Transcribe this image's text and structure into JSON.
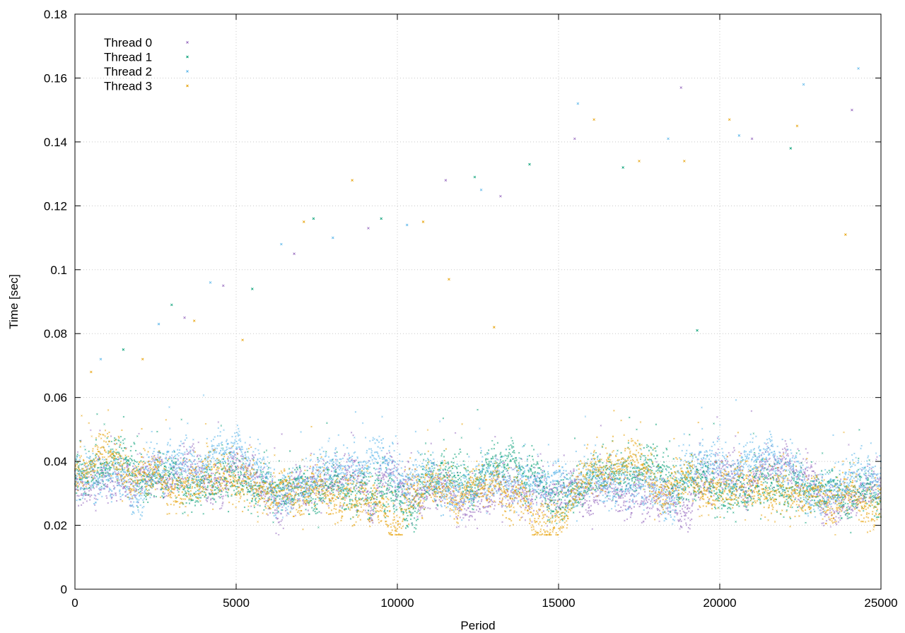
{
  "chart_data": {
    "type": "scatter",
    "title": "",
    "xlabel": "Period",
    "ylabel": "Time [sec]",
    "xlim": [
      0,
      25000
    ],
    "ylim": [
      0,
      0.18
    ],
    "xticks": [
      0,
      5000,
      10000,
      15000,
      20000,
      25000
    ],
    "xtick_labels": [
      "0",
      "5000",
      "10000",
      "15000",
      "20000",
      "25000"
    ],
    "yticks": [
      0,
      0.02,
      0.04,
      0.06,
      0.08,
      0.1,
      0.12,
      0.14,
      0.16,
      0.18
    ],
    "ytick_labels": [
      "0",
      "0.02",
      "0.04",
      "0.06",
      "0.08",
      "0.1",
      "0.12",
      "0.14",
      "0.16",
      "0.18"
    ],
    "grid": true,
    "legend_position": "top-left",
    "series": [
      {
        "name": "Thread 0",
        "color": "#9467bd",
        "baseline": [
          [
            0,
            0.034
          ],
          [
            1000,
            0.035
          ],
          [
            2000,
            0.034
          ],
          [
            3000,
            0.033
          ],
          [
            4000,
            0.034
          ],
          [
            5000,
            0.034
          ],
          [
            6000,
            0.031
          ],
          [
            7000,
            0.032
          ],
          [
            8000,
            0.033
          ],
          [
            9000,
            0.032
          ],
          [
            10000,
            0.031
          ],
          [
            11000,
            0.031
          ],
          [
            12000,
            0.03
          ],
          [
            13000,
            0.031
          ],
          [
            14000,
            0.031
          ],
          [
            15000,
            0.031
          ],
          [
            16000,
            0.033
          ],
          [
            17000,
            0.033
          ],
          [
            18000,
            0.031
          ],
          [
            19000,
            0.032
          ],
          [
            20000,
            0.032
          ],
          [
            21000,
            0.031
          ],
          [
            22000,
            0.031
          ],
          [
            23000,
            0.031
          ],
          [
            24000,
            0.031
          ],
          [
            25000,
            0.03
          ]
        ],
        "outliers": [
          [
            3400,
            0.085
          ],
          [
            4600,
            0.095
          ],
          [
            6800,
            0.105
          ],
          [
            9100,
            0.113
          ],
          [
            11500,
            0.128
          ],
          [
            13200,
            0.123
          ],
          [
            15500,
            0.141
          ],
          [
            18800,
            0.157
          ],
          [
            21000,
            0.141
          ],
          [
            24100,
            0.15
          ]
        ]
      },
      {
        "name": "Thread 1",
        "color": "#009e73",
        "baseline": [
          [
            0,
            0.035
          ],
          [
            1000,
            0.035
          ],
          [
            2000,
            0.034
          ],
          [
            3000,
            0.034
          ],
          [
            4000,
            0.035
          ],
          [
            5000,
            0.034
          ],
          [
            6000,
            0.032
          ],
          [
            7000,
            0.033
          ],
          [
            8000,
            0.034
          ],
          [
            9000,
            0.033
          ],
          [
            10000,
            0.032
          ],
          [
            11000,
            0.032
          ],
          [
            12000,
            0.031
          ],
          [
            13000,
            0.032
          ],
          [
            14000,
            0.032
          ],
          [
            15000,
            0.032
          ],
          [
            16000,
            0.034
          ],
          [
            17000,
            0.034
          ],
          [
            18000,
            0.032
          ],
          [
            19000,
            0.033
          ],
          [
            20000,
            0.033
          ],
          [
            21000,
            0.032
          ],
          [
            22000,
            0.032
          ],
          [
            23000,
            0.032
          ],
          [
            24000,
            0.032
          ],
          [
            25000,
            0.031
          ]
        ],
        "outliers": [
          [
            1500,
            0.075
          ],
          [
            3000,
            0.089
          ],
          [
            5500,
            0.094
          ],
          [
            7400,
            0.116
          ],
          [
            9500,
            0.116
          ],
          [
            12400,
            0.129
          ],
          [
            14100,
            0.133
          ],
          [
            17000,
            0.132
          ],
          [
            19300,
            0.081
          ],
          [
            22200,
            0.138
          ]
        ]
      },
      {
        "name": "Thread 2",
        "color": "#56b4e9",
        "baseline": [
          [
            0,
            0.036
          ],
          [
            1000,
            0.037
          ],
          [
            2000,
            0.036
          ],
          [
            3000,
            0.035
          ],
          [
            4000,
            0.036
          ],
          [
            5000,
            0.036
          ],
          [
            6000,
            0.033
          ],
          [
            7000,
            0.035
          ],
          [
            8000,
            0.036
          ],
          [
            9000,
            0.035
          ],
          [
            10000,
            0.034
          ],
          [
            11000,
            0.034
          ],
          [
            12000,
            0.033
          ],
          [
            13000,
            0.034
          ],
          [
            14000,
            0.034
          ],
          [
            15000,
            0.035
          ],
          [
            16000,
            0.036
          ],
          [
            17000,
            0.036
          ],
          [
            18000,
            0.034
          ],
          [
            19000,
            0.035
          ],
          [
            20000,
            0.035
          ],
          [
            21000,
            0.034
          ],
          [
            22000,
            0.034
          ],
          [
            23000,
            0.034
          ],
          [
            24000,
            0.034
          ],
          [
            25000,
            0.033
          ]
        ],
        "outliers": [
          [
            800,
            0.072
          ],
          [
            2600,
            0.083
          ],
          [
            4200,
            0.096
          ],
          [
            6400,
            0.108
          ],
          [
            8000,
            0.11
          ],
          [
            10300,
            0.114
          ],
          [
            12600,
            0.125
          ],
          [
            15600,
            0.152
          ],
          [
            18400,
            0.141
          ],
          [
            20600,
            0.142
          ],
          [
            22600,
            0.158
          ],
          [
            24300,
            0.163
          ]
        ]
      },
      {
        "name": "Thread 3",
        "color": "#e69f00",
        "baseline": [
          [
            0,
            0.036
          ],
          [
            1000,
            0.037
          ],
          [
            2000,
            0.035
          ],
          [
            3000,
            0.034
          ],
          [
            4000,
            0.035
          ],
          [
            5000,
            0.035
          ],
          [
            6000,
            0.031
          ],
          [
            7000,
            0.033
          ],
          [
            8000,
            0.032
          ],
          [
            9000,
            0.03
          ],
          [
            10000,
            0.027
          ],
          [
            11000,
            0.028
          ],
          [
            12000,
            0.027
          ],
          [
            13000,
            0.024
          ],
          [
            14000,
            0.026
          ],
          [
            15000,
            0.024
          ],
          [
            16000,
            0.035
          ],
          [
            17000,
            0.036
          ],
          [
            18000,
            0.03
          ],
          [
            19000,
            0.033
          ],
          [
            20000,
            0.034
          ],
          [
            21000,
            0.031
          ],
          [
            22000,
            0.031
          ],
          [
            23000,
            0.03
          ],
          [
            24000,
            0.031
          ],
          [
            25000,
            0.028
          ]
        ],
        "outliers": [
          [
            500,
            0.068
          ],
          [
            2100,
            0.072
          ],
          [
            3700,
            0.084
          ],
          [
            5200,
            0.078
          ],
          [
            7100,
            0.115
          ],
          [
            8600,
            0.128
          ],
          [
            10800,
            0.115
          ],
          [
            11600,
            0.097
          ],
          [
            13000,
            0.082
          ],
          [
            16100,
            0.147
          ],
          [
            17500,
            0.134
          ],
          [
            18900,
            0.134
          ],
          [
            20300,
            0.147
          ],
          [
            22400,
            0.145
          ],
          [
            23900,
            0.111
          ]
        ]
      }
    ]
  }
}
